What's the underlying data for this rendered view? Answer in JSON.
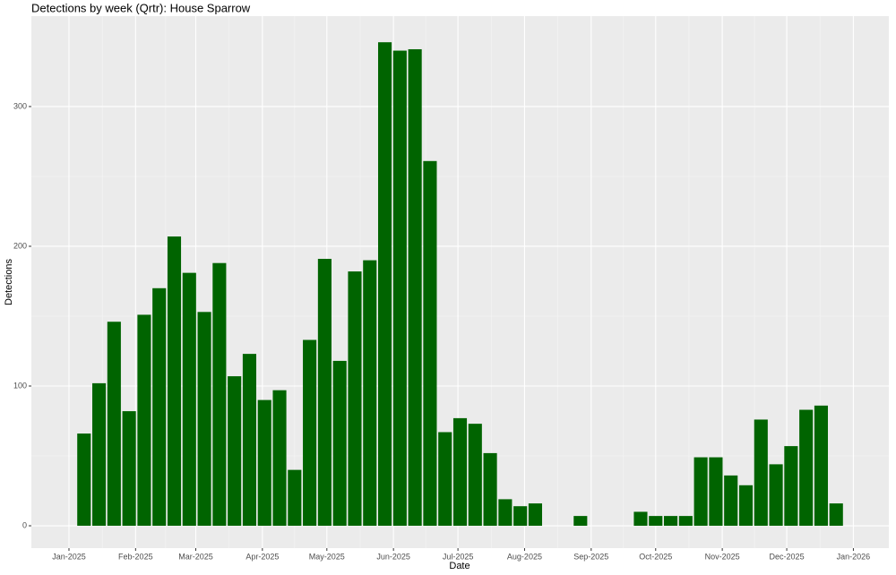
{
  "chart_data": {
    "type": "bar",
    "title": "Detections by week (Qrtr): House Sparrow",
    "x_label": "Date",
    "y_label": "Detections",
    "x": [
      7,
      14,
      21,
      28,
      35,
      42,
      49,
      56,
      63,
      70,
      77,
      84,
      91,
      98,
      105,
      112,
      119,
      126,
      133,
      140,
      147,
      154,
      161,
      168,
      175,
      182,
      189,
      196,
      203,
      210,
      217,
      238,
      266,
      273,
      280,
      287,
      294,
      301,
      308,
      315,
      322,
      329,
      336,
      343,
      350,
      357
    ],
    "values": [
      66,
      102,
      146,
      82,
      151,
      170,
      207,
      181,
      153,
      188,
      107,
      123,
      90,
      97,
      40,
      133,
      191,
      118,
      182,
      190,
      346,
      340,
      341,
      261,
      67,
      77,
      73,
      52,
      19,
      14,
      16,
      7,
      10,
      7,
      7,
      7,
      49,
      49,
      36,
      29,
      76,
      44,
      57,
      83,
      86,
      16
    ],
    "color": "#006400",
    "xlim": [
      -17.5,
      381.5
    ],
    "xticks": [
      {
        "value": 0,
        "label": "Jan-2025"
      },
      {
        "value": 31,
        "label": "Feb-2025"
      },
      {
        "value": 59,
        "label": "Mar-2025"
      },
      {
        "value": 90,
        "label": "Apr-2025"
      },
      {
        "value": 120,
        "label": "May-2025"
      },
      {
        "value": 151,
        "label": "Jun-2025"
      },
      {
        "value": 181,
        "label": "Jul-2025"
      },
      {
        "value": 212,
        "label": "Aug-2025"
      },
      {
        "value": 243,
        "label": "Sep-2025"
      },
      {
        "value": 273,
        "label": "Oct-2025"
      },
      {
        "value": 304,
        "label": "Nov-2025"
      },
      {
        "value": 334,
        "label": "Dec-2025"
      },
      {
        "value": 365,
        "label": "Jan-2026"
      }
    ],
    "ylim": [
      -16,
      364.7
    ],
    "yticks": [
      0,
      100,
      200,
      300
    ],
    "grid": true
  }
}
